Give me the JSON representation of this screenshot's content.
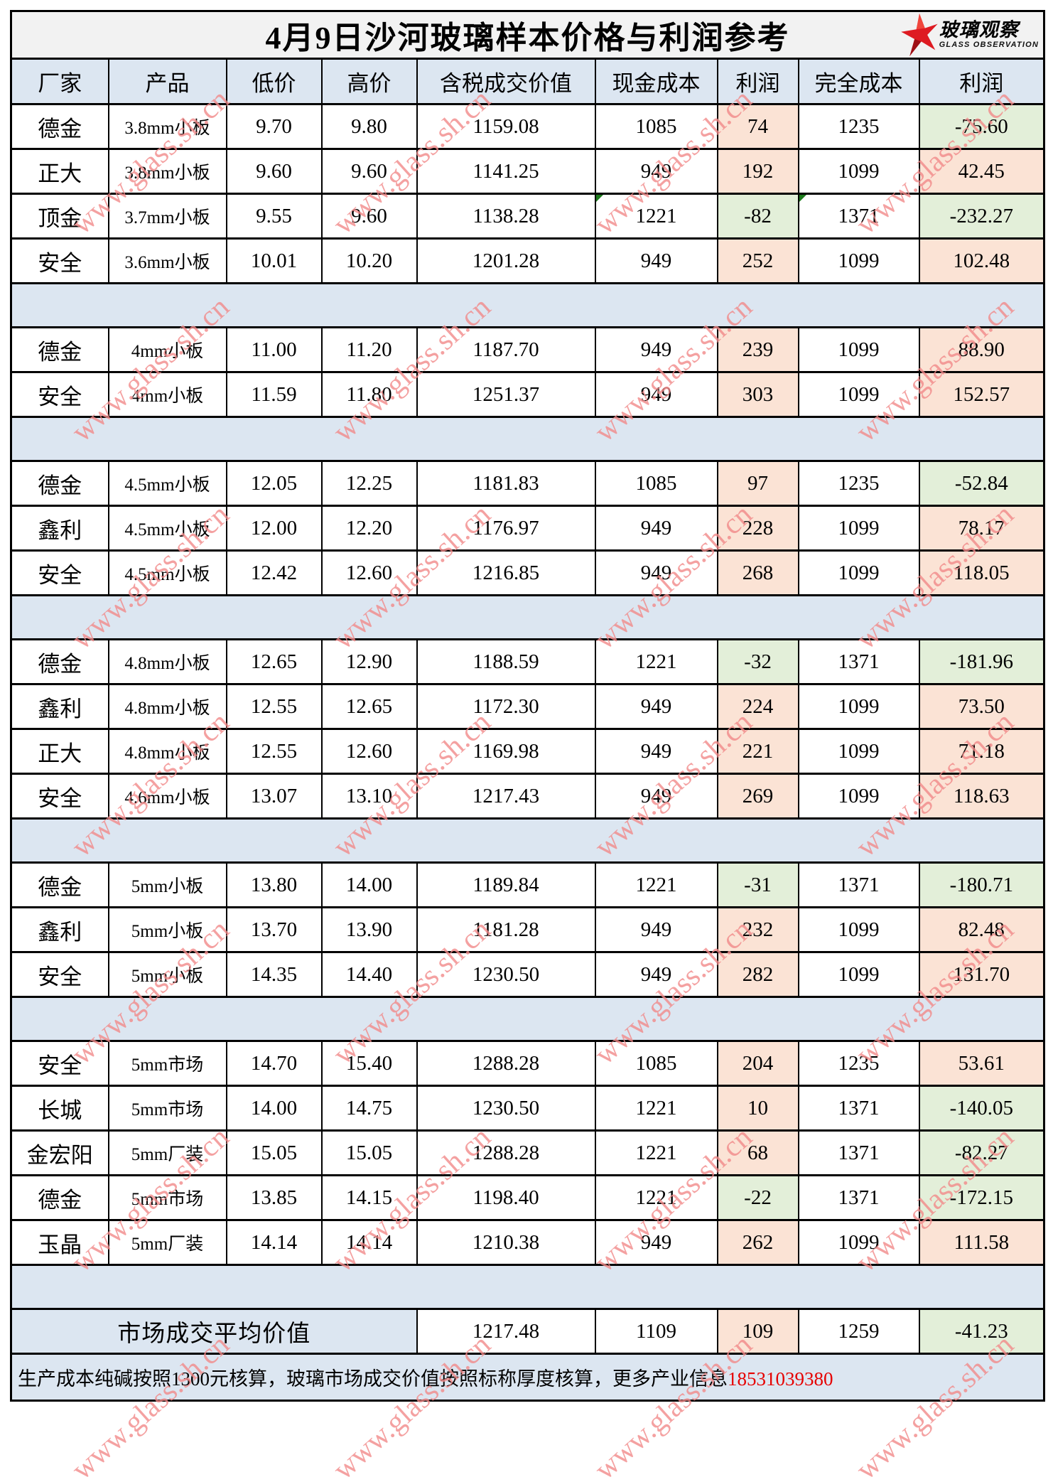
{
  "title": "4月9日沙河玻璃样本价格与利润参考",
  "logo": {
    "cn": "玻璃观察",
    "en": "GLASS OBSERVATION"
  },
  "watermark": "www.glass.sh.cn",
  "columns": [
    "厂家",
    "产品",
    "低价",
    "高价",
    "含税成交价值",
    "现金成本",
    "利润",
    "完全成本",
    "利润"
  ],
  "rows": [
    {
      "factory": "德金",
      "product": "3.8mm小板",
      "low": "9.70",
      "high": "9.80",
      "value": "1159.08",
      "cash_cost": "1085",
      "cash_profit": "74",
      "full_cost": "1235",
      "full_profit": "-75.60"
    },
    {
      "factory": "正大",
      "product": "3.8mm小板",
      "low": "9.60",
      "high": "9.60",
      "value": "1141.25",
      "cash_cost": "949",
      "cash_profit": "192",
      "full_cost": "1099",
      "full_profit": "42.45"
    },
    {
      "factory": "顶金",
      "product": "3.7mm小板",
      "low": "9.55",
      "high": "9.60",
      "value": "1138.28",
      "cash_cost": "1221",
      "cash_profit": "-82",
      "full_cost": "1371",
      "full_profit": "-232.27",
      "error_marks": true
    },
    {
      "factory": "安全",
      "product": "3.6mm小板",
      "low": "10.01",
      "high": "10.20",
      "value": "1201.28",
      "cash_cost": "949",
      "cash_profit": "252",
      "full_cost": "1099",
      "full_profit": "102.48"
    },
    {
      "type": "sep"
    },
    {
      "factory": "德金",
      "product": "4mm小板",
      "low": "11.00",
      "high": "11.20",
      "value": "1187.70",
      "cash_cost": "949",
      "cash_profit": "239",
      "full_cost": "1099",
      "full_profit": "88.90"
    },
    {
      "factory": "安全",
      "product": "4mm小板",
      "low": "11.59",
      "high": "11.80",
      "value": "1251.37",
      "cash_cost": "949",
      "cash_profit": "303",
      "full_cost": "1099",
      "full_profit": "152.57"
    },
    {
      "type": "sep"
    },
    {
      "factory": "德金",
      "product": "4.5mm小板",
      "low": "12.05",
      "high": "12.25",
      "value": "1181.83",
      "cash_cost": "1085",
      "cash_profit": "97",
      "full_cost": "1235",
      "full_profit": "-52.84"
    },
    {
      "factory": "鑫利",
      "product": "4.5mm小板",
      "low": "12.00",
      "high": "12.20",
      "value": "1176.97",
      "cash_cost": "949",
      "cash_profit": "228",
      "full_cost": "1099",
      "full_profit": "78.17"
    },
    {
      "factory": "安全",
      "product": "4.5mm小板",
      "low": "12.42",
      "high": "12.60",
      "value": "1216.85",
      "cash_cost": "949",
      "cash_profit": "268",
      "full_cost": "1099",
      "full_profit": "118.05"
    },
    {
      "type": "sep"
    },
    {
      "factory": "德金",
      "product": "4.8mm小板",
      "low": "12.65",
      "high": "12.90",
      "value": "1188.59",
      "cash_cost": "1221",
      "cash_profit": "-32",
      "full_cost": "1371",
      "full_profit": "-181.96"
    },
    {
      "factory": "鑫利",
      "product": "4.8mm小板",
      "low": "12.55",
      "high": "12.65",
      "value": "1172.30",
      "cash_cost": "949",
      "cash_profit": "224",
      "full_cost": "1099",
      "full_profit": "73.50"
    },
    {
      "factory": "正大",
      "product": "4.8mm小板",
      "low": "12.55",
      "high": "12.60",
      "value": "1169.98",
      "cash_cost": "949",
      "cash_profit": "221",
      "full_cost": "1099",
      "full_profit": "71.18"
    },
    {
      "factory": "安全",
      "product": "4.6mm小板",
      "low": "13.07",
      "high": "13.10",
      "value": "1217.43",
      "cash_cost": "949",
      "cash_profit": "269",
      "full_cost": "1099",
      "full_profit": "118.63"
    },
    {
      "type": "sep"
    },
    {
      "factory": "德金",
      "product": "5mm小板",
      "low": "13.80",
      "high": "14.00",
      "value": "1189.84",
      "cash_cost": "1221",
      "cash_profit": "-31",
      "full_cost": "1371",
      "full_profit": "-180.71"
    },
    {
      "factory": "鑫利",
      "product": "5mm小板",
      "low": "13.70",
      "high": "13.90",
      "value": "1181.28",
      "cash_cost": "949",
      "cash_profit": "232",
      "full_cost": "1099",
      "full_profit": "82.48"
    },
    {
      "factory": "安全",
      "product": "5mm小板",
      "low": "14.35",
      "high": "14.40",
      "value": "1230.50",
      "cash_cost": "949",
      "cash_profit": "282",
      "full_cost": "1099",
      "full_profit": "131.70"
    },
    {
      "type": "sep"
    },
    {
      "factory": "安全",
      "product": "5mm市场",
      "low": "14.70",
      "high": "15.40",
      "value": "1288.28",
      "cash_cost": "1085",
      "cash_profit": "204",
      "full_cost": "1235",
      "full_profit": "53.61"
    },
    {
      "factory": "长城",
      "product": "5mm市场",
      "low": "14.00",
      "high": "14.75",
      "value": "1230.50",
      "cash_cost": "1221",
      "cash_profit": "10",
      "full_cost": "1371",
      "full_profit": "-140.05"
    },
    {
      "factory": "金宏阳",
      "product": "5mm厂装",
      "low": "15.05",
      "high": "15.05",
      "value": "1288.28",
      "cash_cost": "1221",
      "cash_profit": "68",
      "full_cost": "1371",
      "full_profit": "-82.27"
    },
    {
      "factory": "德金",
      "product": "5mm市场",
      "low": "13.85",
      "high": "14.15",
      "value": "1198.40",
      "cash_cost": "1221",
      "cash_profit": "-22",
      "full_cost": "1371",
      "full_profit": "-172.15"
    },
    {
      "factory": "玉晶",
      "product": "5mm厂装",
      "low": "14.14",
      "high": "14.14",
      "value": "1210.38",
      "cash_cost": "949",
      "cash_profit": "262",
      "full_cost": "1099",
      "full_profit": "111.58"
    },
    {
      "type": "sep"
    }
  ],
  "summary": {
    "label": "市场成交平均价值",
    "value": "1217.48",
    "cash_cost": "1109",
    "cash_profit": "109",
    "full_cost": "1259",
    "full_profit": "-41.23"
  },
  "footer": {
    "note": "生产成本纯碱按照1300元核算，玻璃市场成交价值按照标称厚度核算，更多产业信息",
    "phone": "18531039380"
  },
  "colors": {
    "header_bg": "#DCE6F1",
    "separator_bg": "#DCE6F1",
    "profit_positive_bg": "#FBE3D5",
    "profit_negative_bg": "#E3EFD9",
    "title_bg": "#F2F2F2",
    "footer_bg": "#DCE6F1",
    "watermark_color": "#F28A8A",
    "phone_color": "#E60000",
    "logo_red": "#DE1B22",
    "err_green": "#1C7A1C"
  }
}
